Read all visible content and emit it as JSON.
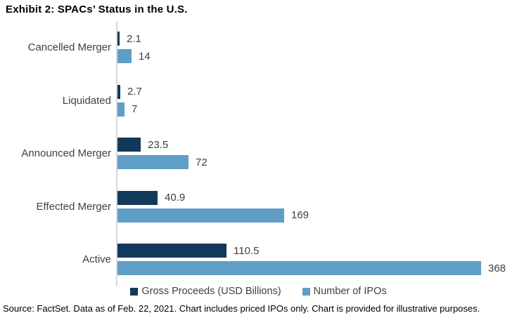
{
  "title": "Exhibit 2: SPACs’ Status in the U.S.",
  "source": "Source: FactSet. Data as of Feb. 22, 2021. Chart includes priced IPOs only. Chart is provided for illustrative purposes.",
  "legend": [
    {
      "label": "Gross Proceeds (USD Billions)",
      "color": "#12395c"
    },
    {
      "label": "Number of IPOs",
      "color": "#5f9ec6"
    }
  ],
  "colors": {
    "gross_proceeds": "#12395c",
    "number_of_ipos": "#5f9ec6",
    "axis_line": "#d9d9d9",
    "label_text": "#404040"
  },
  "chart_data": {
    "type": "bar",
    "orientation": "horizontal",
    "title": "Exhibit 2: SPACs’ Status in the U.S.",
    "categories": [
      "Cancelled Merger",
      "Liquidated",
      "Announced Merger",
      "Effected Merger",
      "Active"
    ],
    "series": [
      {
        "name": "Gross Proceeds (USD Billions)",
        "values": [
          2.1,
          2.7,
          23.5,
          40.9,
          110.5
        ]
      },
      {
        "name": "Number of IPOs",
        "values": [
          14,
          7,
          72,
          169,
          368
        ]
      }
    ],
    "value_labels": true,
    "xlim": [
      0,
      400
    ],
    "grid": false,
    "legend_position": "bottom"
  }
}
